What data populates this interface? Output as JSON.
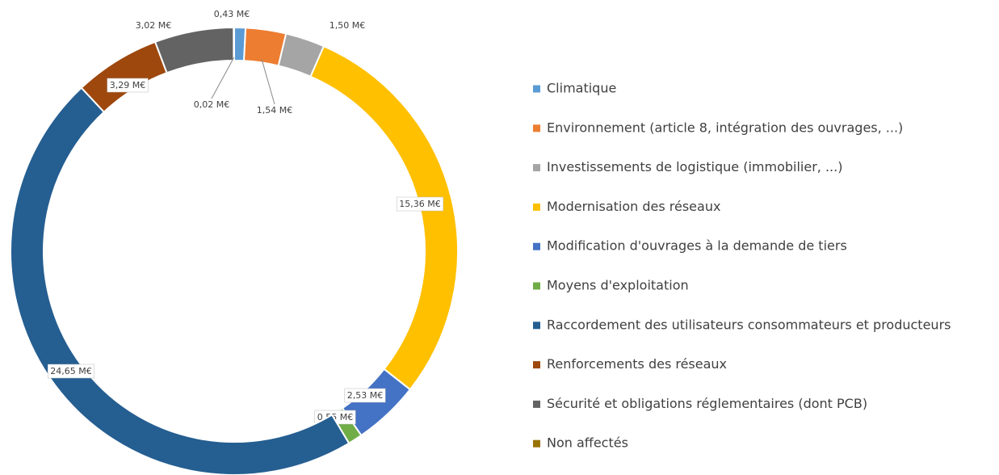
{
  "chart_data": {
    "type": "donut",
    "categories": [
      "Climatique",
      "Environnement (article 8, intégration des ouvrages, ...)",
      "Investissements de logistique (immobilier, ...)",
      "Modernisation des réseaux",
      "Modification d'ouvrages à la demande de tiers",
      "Moyens d'exploitation",
      "Raccordement des utilisateurs consommateurs et producteurs",
      "Renforcements des réseaux",
      "Sécurité et obligations réglementaires (dont PCB)",
      "Non affectés"
    ],
    "values": [
      0.43,
      1.54,
      1.5,
      15.36,
      2.53,
      0.55,
      24.65,
      3.29,
      3.02,
      0.02
    ],
    "value_labels": [
      "0,43 M€",
      "1,54 M€",
      "1,50 M€",
      "15,36 M€",
      "2,53 M€",
      "0,55 M€",
      "24,65 M€",
      "3,29 M€",
      "3,02 M€",
      "0,02 M€"
    ],
    "colors": [
      "#5b9bd5",
      "#ed7d31",
      "#a5a5a5",
      "#ffc000",
      "#4472c4",
      "#70ad47",
      "#255e91",
      "#9e480e",
      "#636363",
      "#997300"
    ],
    "legend": "right"
  }
}
